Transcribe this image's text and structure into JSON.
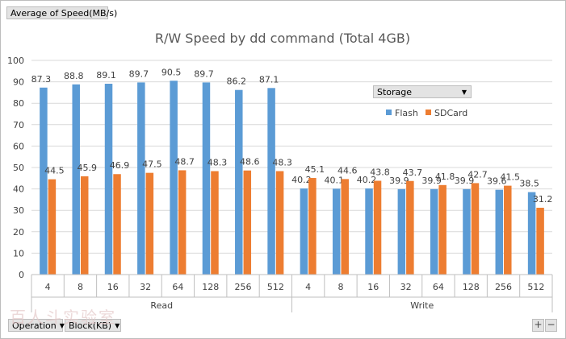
{
  "controls": {
    "measure_button": "Average of Speed(MB/s)",
    "storage_filter": "Storage",
    "operation_filter": "Operation",
    "block_filter": "Block(KB)",
    "zoom_in": "+",
    "zoom_out": "−"
  },
  "watermark_text": "百人斗实验室",
  "colors": {
    "flash": "#5b9bd5",
    "sdcard": "#ed7d31",
    "grid": "#d9d9d9",
    "text": "#404040",
    "title": "#595959"
  },
  "chart_data": {
    "type": "bar",
    "title": "R/W Speed by dd command (Total 4GB)",
    "xlabel": "",
    "ylabel": "",
    "ylim": [
      0,
      100
    ],
    "yticks": [
      0,
      10,
      20,
      30,
      40,
      50,
      60,
      70,
      80,
      90,
      100
    ],
    "grid": true,
    "legend_position": "top-right",
    "groups": [
      {
        "label": "Read",
        "categories": [
          "4",
          "8",
          "16",
          "32",
          "64",
          "128",
          "256",
          "512"
        ]
      },
      {
        "label": "Write",
        "categories": [
          "4",
          "8",
          "16",
          "32",
          "64",
          "128",
          "256",
          "512"
        ]
      }
    ],
    "series": [
      {
        "name": "Flash",
        "values": [
          87.3,
          88.8,
          89.1,
          89.7,
          90.5,
          89.7,
          86.2,
          87.1,
          40.2,
          40.1,
          40.2,
          39.9,
          39.9,
          39.9,
          39.6,
          38.5
        ]
      },
      {
        "name": "SDCard",
        "values": [
          44.5,
          45.9,
          46.9,
          47.5,
          48.7,
          48.3,
          48.6,
          48.3,
          45.1,
          44.6,
          43.8,
          43.7,
          41.8,
          42.7,
          41.5,
          31.2
        ]
      }
    ]
  }
}
